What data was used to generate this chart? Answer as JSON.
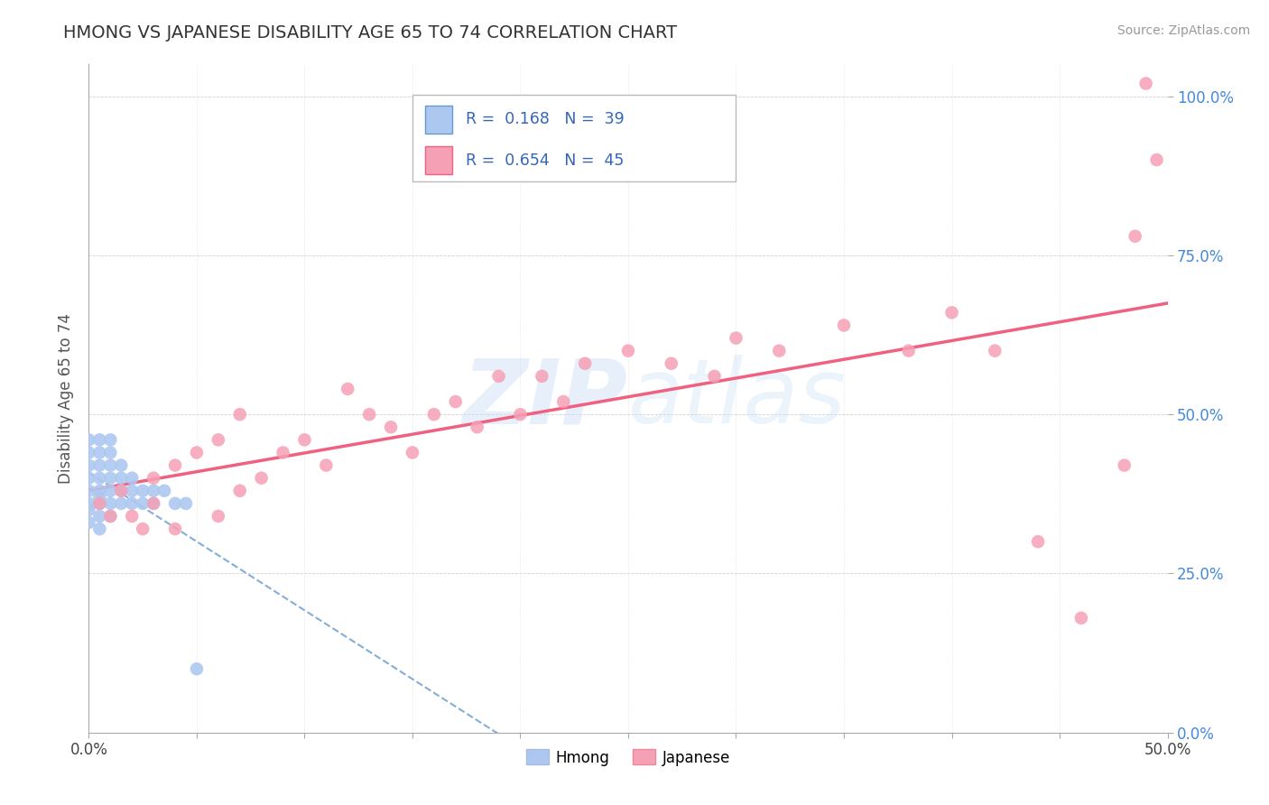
{
  "title": "HMONG VS JAPANESE DISABILITY AGE 65 TO 74 CORRELATION CHART",
  "source": "Source: ZipAtlas.com",
  "ylabel": "Disability Age 65 to 74",
  "xlim": [
    0.0,
    0.5
  ],
  "ylim": [
    0.0,
    1.05
  ],
  "hmong_R": 0.168,
  "hmong_N": 39,
  "japanese_R": 0.654,
  "japanese_N": 45,
  "hmong_color": "#adc8f0",
  "japanese_color": "#f5a0b5",
  "hmong_line_color": "#6699cc",
  "japanese_line_color": "#f06080",
  "hmong_x": [
    0.0,
    0.0,
    0.0,
    0.0,
    0.0,
    0.0,
    0.0,
    0.0,
    0.005,
    0.005,
    0.005,
    0.005,
    0.005,
    0.005,
    0.005,
    0.005,
    0.005,
    0.01,
    0.01,
    0.01,
    0.01,
    0.01,
    0.01,
    0.01,
    0.015,
    0.015,
    0.015,
    0.015,
    0.02,
    0.02,
    0.02,
    0.025,
    0.025,
    0.03,
    0.03,
    0.035,
    0.04,
    0.045,
    0.05
  ],
  "hmong_y": [
    0.33,
    0.35,
    0.36,
    0.38,
    0.4,
    0.42,
    0.44,
    0.46,
    0.32,
    0.34,
    0.36,
    0.37,
    0.38,
    0.4,
    0.42,
    0.44,
    0.46,
    0.34,
    0.36,
    0.38,
    0.4,
    0.42,
    0.44,
    0.46,
    0.36,
    0.38,
    0.4,
    0.42,
    0.36,
    0.38,
    0.4,
    0.36,
    0.38,
    0.36,
    0.38,
    0.38,
    0.36,
    0.36,
    0.1
  ],
  "japanese_x": [
    0.005,
    0.01,
    0.015,
    0.02,
    0.025,
    0.03,
    0.03,
    0.04,
    0.04,
    0.05,
    0.06,
    0.06,
    0.07,
    0.07,
    0.08,
    0.09,
    0.1,
    0.11,
    0.12,
    0.13,
    0.14,
    0.15,
    0.16,
    0.17,
    0.18,
    0.19,
    0.2,
    0.21,
    0.22,
    0.23,
    0.25,
    0.27,
    0.29,
    0.3,
    0.32,
    0.35,
    0.38,
    0.4,
    0.42,
    0.44,
    0.46,
    0.48,
    0.485,
    0.49,
    0.495
  ],
  "japanese_y": [
    0.36,
    0.34,
    0.38,
    0.34,
    0.32,
    0.36,
    0.4,
    0.32,
    0.42,
    0.44,
    0.34,
    0.46,
    0.38,
    0.5,
    0.4,
    0.44,
    0.46,
    0.42,
    0.54,
    0.5,
    0.48,
    0.44,
    0.5,
    0.52,
    0.48,
    0.56,
    0.5,
    0.56,
    0.52,
    0.58,
    0.6,
    0.58,
    0.56,
    0.62,
    0.6,
    0.64,
    0.6,
    0.66,
    0.6,
    0.3,
    0.18,
    0.42,
    0.78,
    1.02,
    0.9
  ]
}
